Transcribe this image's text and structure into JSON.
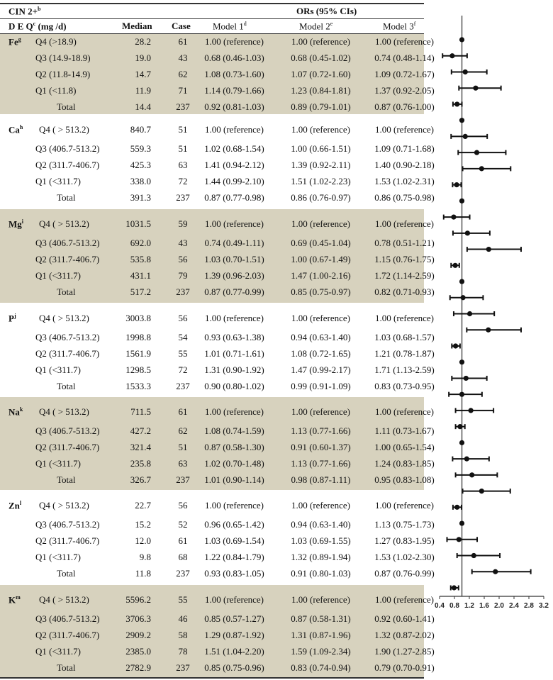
{
  "header": {
    "outcome": "CIN 2+",
    "outcome_sup": "b",
    "ors_title": "ORs (95% CIs)",
    "deq": "D E Q",
    "deq_sup": "c",
    "deq_unit": " (mg /d)",
    "median": "Median",
    "case": "Case",
    "model1": "Model 1",
    "model1_sup": "d",
    "model2": "Model 2",
    "model2_sup": "e",
    "model3": "Model 3",
    "model3_sup": "f"
  },
  "groups": [
    {
      "nutrient": "Fe",
      "sup": "g",
      "shaded": true,
      "rows": [
        {
          "q": "Q4 (>18.9)",
          "median": "28.2",
          "case": "61",
          "m1": "1.00 (reference)",
          "m2": "1.00 (reference)",
          "m3": "1.00 (reference)"
        },
        {
          "q": "Q3 (14.9-18.9)",
          "median": "19.0",
          "case": "43",
          "m1": "0.68 (0.46-1.03)",
          "m2": "0.68 (0.45-1.02)",
          "m3": "0.74 (0.48-1.14)"
        },
        {
          "q": "Q2 (11.8-14.9)",
          "median": "14.7",
          "case": "62",
          "m1": "1.08 (0.73-1.60)",
          "m2": "1.07 (0.72-1.60)",
          "m3": "1.09 (0.72-1.67)"
        },
        {
          "q": "Q1 (<11.8)",
          "median": "11.9",
          "case": "71",
          "m1": "1.14 (0.79-1.66)",
          "m2": "1.23 (0.84-1.81)",
          "m3": "1.37 (0.92-2.05)"
        },
        {
          "q": "Total",
          "median": "14.4",
          "case": "237",
          "m1": "0.92 (0.81-1.03)",
          "m2": "0.89 (0.79-1.01)",
          "m3": "0.87 (0.76-1.00)"
        }
      ]
    },
    {
      "nutrient": "Ca",
      "sup": "h",
      "shaded": false,
      "rows": [
        {
          "q": "Q4 ( > 513.2)",
          "median": "840.7",
          "case": "51",
          "m1": "1.00 (reference)",
          "m2": "1.00 (reference)",
          "m3": "1.00 (reference)"
        },
        {
          "q": "Q3 (406.7-513.2)",
          "median": "559.3",
          "case": "51",
          "m1": "1.02 (0.68-1.54)",
          "m2": "1.00 (0.66-1.51)",
          "m3": "1.09 (0.71-1.68)"
        },
        {
          "q": "Q2 (311.7-406.7)",
          "median": "425.3",
          "case": "63",
          "m1": "1.41 (0.94-2.12)",
          "m2": "1.39 (0.92-2.11)",
          "m3": "1.40 (0.90-2.18)"
        },
        {
          "q": "Q1 (<311.7)",
          "median": "338.0",
          "case": "72",
          "m1": "1.44 (0.99-2.10)",
          "m2": "1.51 (1.02-2.23)",
          "m3": "1.53 (1.02-2.31)"
        },
        {
          "q": "Total",
          "median": "391.3",
          "case": "237",
          "m1": "0.87 (0.77-0.98)",
          "m2": "0.86 (0.76-0.97)",
          "m3": "0.86 (0.75-0.98)"
        }
      ]
    },
    {
      "nutrient": "Mg",
      "sup": "i",
      "shaded": true,
      "rows": [
        {
          "q": "Q4 ( > 513.2)",
          "median": "1031.5",
          "case": "59",
          "m1": "1.00 (reference)",
          "m2": "1.00 (reference)",
          "m3": "1.00 (reference)"
        },
        {
          "q": "Q3 (406.7-513.2)",
          "median": "692.0",
          "case": "43",
          "m1": "0.74 (0.49-1.11)",
          "m2": "0.69 (0.45-1.04)",
          "m3": "0.78 (0.51-1.21)"
        },
        {
          "q": "Q2 (311.7-406.7)",
          "median": "535.8",
          "case": "56",
          "m1": "1.03 (0.70-1.51)",
          "m2": "1.00 (0.67-1.49)",
          "m3": "1.15 (0.76-1.75)"
        },
        {
          "q": "Q1 (<311.7)",
          "median": "431.1",
          "case": "79",
          "m1": "1.39 (0.96-2.03)",
          "m2": "1.47 (1.00-2.16)",
          "m3": "1.72 (1.14-2.59)"
        },
        {
          "q": "Total",
          "median": "517.2",
          "case": "237",
          "m1": "0.87 (0.77-0.99)",
          "m2": "0.85 (0.75-0.97)",
          "m3": "0.82 (0.71-0.93)"
        }
      ]
    },
    {
      "nutrient": "P",
      "sup": "j",
      "shaded": false,
      "rows": [
        {
          "q": "Q4 ( > 513.2)",
          "median": "3003.8",
          "case": "56",
          "m1": "1.00 (reference)",
          "m2": "1.00 (reference)",
          "m3": "1.00 (reference)"
        },
        {
          "q": "Q3 (406.7-513.2)",
          "median": "1998.8",
          "case": "54",
          "m1": "0.93 (0.63-1.38)",
          "m2": "0.94 (0.63-1.40)",
          "m3": "1.03 (0.68-1.57)"
        },
        {
          "q": "Q2 (311.7-406.7)",
          "median": "1561.9",
          "case": "55",
          "m1": "1.01 (0.71-1.61)",
          "m2": "1.08 (0.72-1.65)",
          "m3": "1.21 (0.78-1.87)"
        },
        {
          "q": "Q1 (<311.7)",
          "median": "1298.5",
          "case": "72",
          "m1": "1.31 (0.90-1.92)",
          "m2": "1.47 (0.99-2.17)",
          "m3": "1.71 (1.13-2.59)"
        },
        {
          "q": "Total",
          "median": "1533.3",
          "case": "237",
          "m1": "0.90 (0.80-1.02)",
          "m2": "0.99 (0.91-1.09)",
          "m3": "0.83 (0.73-0.95)"
        }
      ]
    },
    {
      "nutrient": "Na",
      "sup": "k",
      "shaded": true,
      "rows": [
        {
          "q": "Q4 ( > 513.2)",
          "median": "711.5",
          "case": "61",
          "m1": "1.00 (reference)",
          "m2": "1.00 (reference)",
          "m3": "1.00 (reference)"
        },
        {
          "q": "Q3 (406.7-513.2)",
          "median": "427.2",
          "case": "62",
          "m1": "1.08 (0.74-1.59)",
          "m2": "1.13 (0.77-1.66)",
          "m3": "1.11 (0.73-1.67)"
        },
        {
          "q": "Q2 (311.7-406.7)",
          "median": "321.4",
          "case": "51",
          "m1": "0.87 (0.58-1.30)",
          "m2": "0.91 (0.60-1.37)",
          "m3": "1.00 (0.65-1.54)"
        },
        {
          "q": "Q1 (<311.7)",
          "median": "235.8",
          "case": "63",
          "m1": "1.02 (0.70-1.48)",
          "m2": "1.13 (0.77-1.66)",
          "m3": "1.24 (0.83-1.85)"
        },
        {
          "q": "Total",
          "median": "326.7",
          "case": "237",
          "m1": "1.01 (0.90-1.14)",
          "m2": "0.98 (0.87-1.11)",
          "m3": "0.95 (0.83-1.08)"
        }
      ]
    },
    {
      "nutrient": "Zn",
      "sup": "l",
      "shaded": false,
      "rows": [
        {
          "q": "Q4 ( > 513.2)",
          "median": "22.7",
          "case": "56",
          "m1": "1.00 (reference)",
          "m2": "1.00 (reference)",
          "m3": "1.00 (reference)"
        },
        {
          "q": "Q3 (406.7-513.2)",
          "median": "15.2",
          "case": "52",
          "m1": "0.96 (0.65-1.42)",
          "m2": "0.94 (0.63-1.40)",
          "m3": "1.13 (0.75-1.73)"
        },
        {
          "q": "Q2 (311.7-406.7)",
          "median": "12.0",
          "case": "61",
          "m1": "1.03 (0.69-1.54)",
          "m2": "1.03 (0.69-1.55)",
          "m3": "1.27 (0.83-1.95)"
        },
        {
          "q": "Q1 (<311.7)",
          "median": "9.8",
          "case": "68",
          "m1": "1.22 (0.84-1.79)",
          "m2": "1.32 (0.89-1.94)",
          "m3": "1.53 (1.02-2.30)"
        },
        {
          "q": "Total",
          "median": "11.8",
          "case": "237",
          "m1": "0.93 (0.83-1.05)",
          "m2": "0.91 (0.80-1.03)",
          "m3": "0.87 (0.76-0.99)"
        }
      ]
    },
    {
      "nutrient": "K",
      "sup": "m",
      "shaded": true,
      "rows": [
        {
          "q": "Q4 ( > 513.2)",
          "median": "5596.2",
          "case": "55",
          "m1": "1.00 (reference)",
          "m2": "1.00 (reference)",
          "m3": "1.00 (reference)"
        },
        {
          "q": "Q3 (406.7-513.2)",
          "median": "3706.3",
          "case": "46",
          "m1": "0.85 (0.57-1.27)",
          "m2": "0.87 (0.58-1.31)",
          "m3": "0.92 (0.60-1.41)"
        },
        {
          "q": "Q2 (311.7-406.7)",
          "median": "2909.2",
          "case": "58",
          "m1": "1.29 (0.87-1.92)",
          "m2": "1.31 (0.87-1.96)",
          "m3": "1.32 (0.87-2.02)"
        },
        {
          "q": "Q1 (<311.7)",
          "median": "2385.0",
          "case": "78",
          "m1": "1.51 (1.04-2.20)",
          "m2": "1.59 (1.09-2.34)",
          "m3": "1.90 (1.27-2.85)"
        },
        {
          "q": "Total",
          "median": "2782.9",
          "case": "237",
          "m1": "0.85 (0.75-0.96)",
          "m2": "0.83 (0.74-0.94)",
          "m3": "0.79 (0.70-0.91)"
        }
      ]
    }
  ],
  "chart_data": {
    "type": "forest",
    "xlim": [
      0.4,
      3.2
    ],
    "xticks": [
      "0.4",
      "0.8",
      "1.2",
      "1.6",
      "2.0",
      "2.4",
      "2.8",
      "3.2"
    ],
    "reference_line": 1.0,
    "points": [
      [
        1.0,
        1.0,
        1.0
      ],
      [
        0.74,
        0.48,
        1.14
      ],
      [
        1.09,
        0.72,
        1.67
      ],
      [
        1.37,
        0.92,
        2.05
      ],
      [
        0.87,
        0.76,
        1.0
      ],
      [
        1.0,
        1.0,
        1.0
      ],
      [
        1.09,
        0.71,
        1.68
      ],
      [
        1.4,
        0.9,
        2.18
      ],
      [
        1.53,
        1.02,
        2.31
      ],
      [
        0.86,
        0.75,
        0.98
      ],
      [
        1.0,
        1.0,
        1.0
      ],
      [
        0.78,
        0.51,
        1.21
      ],
      [
        1.15,
        0.76,
        1.75
      ],
      [
        1.72,
        1.14,
        2.59
      ],
      [
        0.82,
        0.71,
        0.93
      ],
      [
        1.0,
        1.0,
        1.0
      ],
      [
        1.03,
        0.68,
        1.57
      ],
      [
        1.21,
        0.78,
        1.87
      ],
      [
        1.71,
        1.13,
        2.59
      ],
      [
        0.83,
        0.73,
        0.95
      ],
      [
        1.0,
        1.0,
        1.0
      ],
      [
        1.11,
        0.73,
        1.67
      ],
      [
        1.0,
        0.65,
        1.54
      ],
      [
        1.24,
        0.83,
        1.85
      ],
      [
        0.95,
        0.83,
        1.08
      ],
      [
        1.0,
        1.0,
        1.0
      ],
      [
        1.13,
        0.75,
        1.73
      ],
      [
        1.27,
        0.83,
        1.95
      ],
      [
        1.53,
        1.02,
        2.3
      ],
      [
        0.87,
        0.76,
        0.99
      ],
      [
        1.0,
        1.0,
        1.0
      ],
      [
        0.92,
        0.6,
        1.41
      ],
      [
        1.32,
        0.87,
        2.02
      ],
      [
        1.9,
        1.27,
        2.85
      ],
      [
        0.79,
        0.7,
        0.91
      ]
    ]
  }
}
